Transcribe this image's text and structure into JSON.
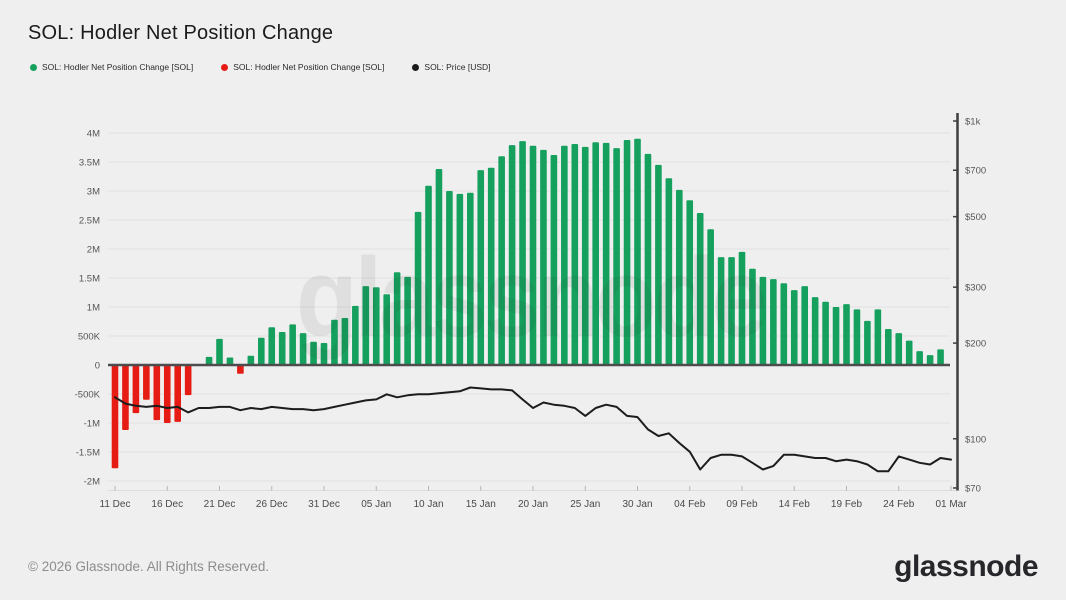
{
  "page": {
    "title": "SOL: Hodler Net Position Change",
    "footer_text": "© 2026 Glassnode. All Rights Reserved.",
    "logo_text": "glassnode",
    "watermark": "glassnode",
    "background_color": "#efefef"
  },
  "legend": {
    "items": [
      {
        "label": "SOL: Hodler Net Position Change [SOL]",
        "color": "#16a05e"
      },
      {
        "label": "SOL: Hodler Net Position Change [SOL]",
        "color": "#e51b14"
      },
      {
        "label": "SOL: Price [USD]",
        "color": "#1c1c1c"
      }
    ]
  },
  "colors": {
    "positive_bar": "#16a05e",
    "negative_bar": "#e51b14",
    "price_line": "#1c1c1c",
    "grid_line": "#e1e1e1",
    "zero_line": "#4d4d4f",
    "right_axis_line": "#3e3e40",
    "tick_text": "#565656",
    "x_tick_text": "#4a4a4a",
    "watermark_fill": "#2e2e2e"
  },
  "chart_data": {
    "type": "bar+line",
    "title": "SOL: Hodler Net Position Change",
    "x_tick_labels": [
      "11 Dec",
      "16 Dec",
      "21 Dec",
      "26 Dec",
      "31 Dec",
      "05 Jan",
      "10 Jan",
      "15 Jan",
      "20 Jan",
      "25 Jan",
      "30 Jan",
      "04 Feb",
      "09 Feb",
      "14 Feb",
      "19 Feb",
      "24 Feb",
      "01 Mar"
    ],
    "x_tick_day_step": 5,
    "left_axis": {
      "title": "Hodler Net Position Change [SOL]",
      "tick_labels": [
        "4M",
        "3.5M",
        "3M",
        "2.5M",
        "2M",
        "1.5M",
        "1M",
        "500K",
        "0",
        "-500K",
        "-1M",
        "-1.5M",
        "-2M"
      ],
      "tick_values_millions": [
        4,
        3.5,
        3,
        2.5,
        2,
        1.5,
        1,
        0.5,
        0,
        -0.5,
        -1,
        -1.5,
        -2
      ],
      "ylim_millions": [
        -2,
        4
      ],
      "scale": "linear"
    },
    "right_axis": {
      "title": "Price [USD]",
      "tick_labels": [
        "$1k",
        "$700",
        "$500",
        "$300",
        "$200",
        "$100",
        "$70"
      ],
      "tick_values_usd": [
        1000,
        700,
        500,
        300,
        200,
        100,
        70
      ],
      "ylim_usd": [
        70,
        1000
      ],
      "scale": "log"
    },
    "grid": true,
    "legend_position": "top-left",
    "series": [
      {
        "name": "SOL: Hodler Net Position Change [SOL]",
        "type": "bar",
        "unit": "million SOL",
        "start_x_label": "11 Dec",
        "interval_days": 1,
        "values_millions": [
          -1.78,
          -1.12,
          -0.83,
          -0.6,
          -0.95,
          -1.0,
          -0.98,
          -0.52,
          0.0,
          0.14,
          0.45,
          0.13,
          -0.15,
          0.16,
          0.47,
          0.65,
          0.57,
          0.7,
          0.55,
          0.4,
          0.38,
          0.78,
          0.81,
          1.02,
          1.36,
          1.34,
          1.22,
          1.6,
          1.52,
          2.64,
          3.09,
          3.38,
          3.0,
          2.95,
          2.97,
          3.36,
          3.4,
          3.6,
          3.79,
          3.86,
          3.78,
          3.71,
          3.62,
          3.78,
          3.81,
          3.76,
          3.84,
          3.83,
          3.74,
          3.88,
          3.9,
          3.64,
          3.45,
          3.22,
          3.02,
          2.84,
          2.62,
          2.34,
          1.86,
          1.86,
          1.95,
          1.66,
          1.52,
          1.48,
          1.41,
          1.29,
          1.36,
          1.17,
          1.09,
          1.0,
          1.05,
          0.96,
          0.76,
          0.96,
          0.62,
          0.55,
          0.42,
          0.24,
          0.17,
          0.27
        ]
      },
      {
        "name": "SOL: Price [USD]",
        "type": "line",
        "unit": "USD",
        "start_x_label": "11 Dec",
        "interval_days": 1,
        "values_usd": [
          135,
          129,
          127,
          126,
          127,
          125,
          126,
          121,
          125,
          125,
          126,
          126,
          123,
          125,
          124,
          126,
          125,
          124,
          124,
          123,
          124,
          126,
          128,
          130,
          132,
          133,
          138,
          135,
          137,
          138,
          138,
          139,
          140,
          141,
          145,
          144,
          143,
          143,
          142,
          133,
          125,
          130,
          128,
          127,
          125,
          118,
          125,
          128,
          126,
          118,
          117,
          107,
          102,
          104,
          97,
          91,
          80,
          87,
          89,
          89,
          88,
          84,
          80,
          82,
          89,
          89,
          88,
          87,
          87,
          85,
          86,
          85,
          83,
          79,
          79,
          88,
          86,
          84,
          83,
          87,
          86
        ]
      }
    ]
  }
}
